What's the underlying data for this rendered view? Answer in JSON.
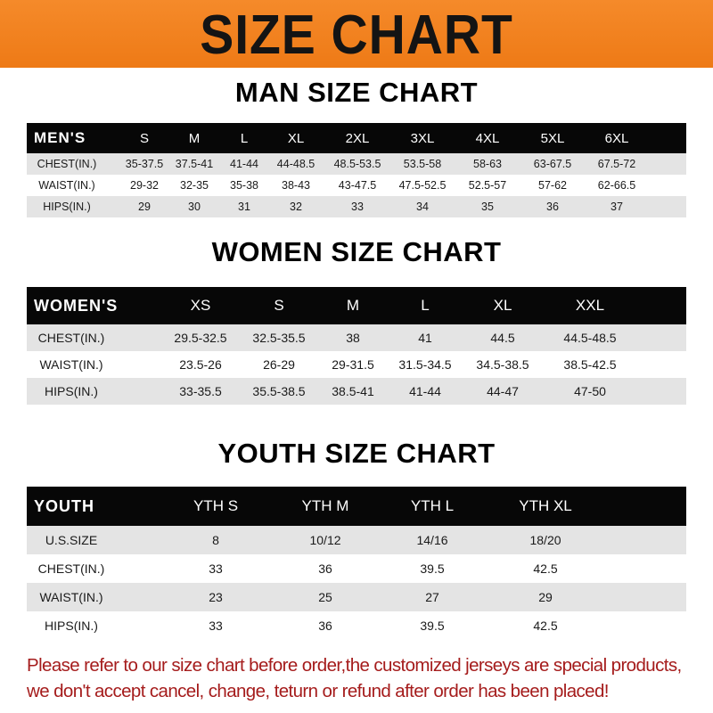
{
  "header": {
    "title": "SIZE CHART",
    "color": "#f0801f"
  },
  "men": {
    "title": "MAN SIZE CHART",
    "columns": [
      "MEN'S",
      "S",
      "M",
      "L",
      "XL",
      "2XL",
      "3XL",
      "4XL",
      "5XL",
      "6XL"
    ],
    "rows": [
      [
        "CHEST(IN.)",
        "35-37.5",
        "37.5-41",
        "41-44",
        "44-48.5",
        "48.5-53.5",
        "53.5-58",
        "58-63",
        "63-67.5",
        "67.5-72"
      ],
      [
        "WAIST(IN.)",
        "29-32",
        "32-35",
        "35-38",
        "38-43",
        "43-47.5",
        "47.5-52.5",
        "52.5-57",
        "57-62",
        "62-66.5"
      ],
      [
        "HIPS(IN.)",
        "29",
        "30",
        "31",
        "32",
        "33",
        "34",
        "35",
        "36",
        "37"
      ]
    ]
  },
  "women": {
    "title": "WOMEN SIZE CHART",
    "columns": [
      "WOMEN'S",
      "XS",
      "S",
      "M",
      "L",
      "XL",
      "XXL"
    ],
    "rows": [
      [
        "CHEST(IN.)",
        "29.5-32.5",
        "32.5-35.5",
        "38",
        "41",
        "44.5",
        "44.5-48.5"
      ],
      [
        "WAIST(IN.)",
        "23.5-26",
        "26-29",
        "29-31.5",
        "31.5-34.5",
        "34.5-38.5",
        "38.5-42.5"
      ],
      [
        "HIPS(IN.)",
        "33-35.5",
        "35.5-38.5",
        "38.5-41",
        "41-44",
        "44-47",
        "47-50"
      ]
    ]
  },
  "youth": {
    "title": "YOUTH SIZE CHART",
    "columns": [
      "YOUTH",
      "YTH S",
      "YTH M",
      "YTH L",
      "YTH XL"
    ],
    "rows": [
      [
        "U.S.SIZE",
        "8",
        "10/12",
        "14/16",
        "18/20"
      ],
      [
        "CHEST(IN.)",
        "33",
        "36",
        "39.5",
        "42.5"
      ],
      [
        "WAIST(IN.)",
        "23",
        "25",
        "27",
        "29"
      ],
      [
        "HIPS(IN.)",
        "33",
        "36",
        "39.5",
        "42.5"
      ]
    ]
  },
  "note": {
    "line1": "Please refer to our size chart before order,the customized jerseys are special products,",
    "line2": "we don't accept cancel, change, teturn or refund after order has been placed!",
    "color": "#a51c1c"
  }
}
